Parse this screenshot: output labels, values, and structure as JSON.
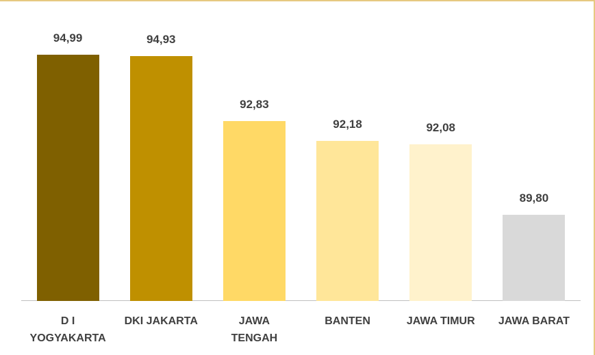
{
  "chart_data": {
    "type": "bar",
    "categories": [
      "D I\nYOGYAKARTA",
      "DKI JAKARTA",
      "JAWA\nTENGAH",
      "BANTEN",
      "JAWA TIMUR",
      "JAWA BARAT"
    ],
    "values": [
      94.99,
      94.93,
      92.83,
      92.18,
      92.08,
      89.8
    ],
    "value_labels": [
      "94,99",
      "94,93",
      "92,83",
      "92,18",
      "92,08",
      "89,80"
    ],
    "colors": [
      "#7f6000",
      "#bf9000",
      "#ffd966",
      "#ffe699",
      "#fff2cc",
      "#d9d9d9"
    ],
    "ylim": [
      87,
      96
    ]
  }
}
